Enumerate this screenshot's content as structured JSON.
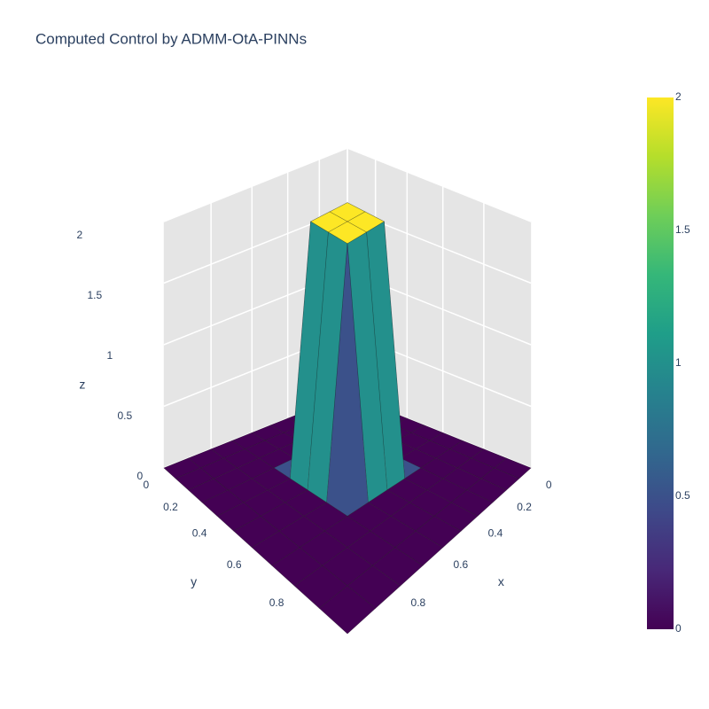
{
  "chart_data": {
    "type": "surface",
    "title": "Computed Control by ADMM-OtA-PINNs",
    "x": [
      0,
      0.1,
      0.2,
      0.3,
      0.4,
      0.5,
      0.6,
      0.7,
      0.8,
      0.9,
      1
    ],
    "y": [
      0,
      0.1,
      0.2,
      0.3,
      0.4,
      0.5,
      0.6,
      0.7,
      0.8,
      0.9,
      1
    ],
    "z": [
      [
        0,
        0,
        0,
        0,
        0,
        0,
        0,
        0,
        0,
        0,
        0
      ],
      [
        0,
        0,
        0,
        0,
        0,
        0,
        0,
        0,
        0,
        0,
        0
      ],
      [
        0,
        0,
        0,
        0,
        0,
        0,
        0,
        0,
        0,
        0,
        0
      ],
      [
        0,
        0,
        0,
        0,
        0,
        0,
        0,
        0,
        0,
        0,
        0
      ],
      [
        0,
        0,
        0,
        0,
        2,
        2,
        2,
        0,
        0,
        0,
        0
      ],
      [
        0,
        0,
        0,
        0,
        2,
        2,
        2,
        0,
        0,
        0,
        0
      ],
      [
        0,
        0,
        0,
        0,
        2,
        2,
        2,
        0,
        0,
        0,
        0
      ],
      [
        0,
        0,
        0,
        0,
        0,
        0,
        0,
        0,
        0,
        0,
        0
      ],
      [
        0,
        0,
        0,
        0,
        0,
        0,
        0,
        0,
        0,
        0,
        0
      ],
      [
        0,
        0,
        0,
        0,
        0,
        0,
        0,
        0,
        0,
        0,
        0
      ],
      [
        0,
        0,
        0,
        0,
        0,
        0,
        0,
        0,
        0,
        0,
        0
      ]
    ],
    "xlim": [
      0,
      1
    ],
    "ylim": [
      0,
      1
    ],
    "zlim": [
      0,
      2
    ],
    "xticks": [
      0,
      0.2,
      0.4,
      0.6,
      0.8
    ],
    "yticks": [
      0,
      0.2,
      0.4,
      0.6,
      0.8
    ],
    "zticks": [
      0,
      0.5,
      1,
      1.5,
      2
    ],
    "x_label": "x",
    "y_label": "y",
    "z_label": "z",
    "colorscale": [
      "#440154",
      "#482878",
      "#3e4989",
      "#31688e",
      "#26828e",
      "#1f9e89",
      "#35b779",
      "#6ece58",
      "#b5de2b",
      "#fde725"
    ],
    "clim": [
      0,
      2
    ],
    "cticks": [
      0,
      0.5,
      1,
      1.5,
      2
    ]
  }
}
